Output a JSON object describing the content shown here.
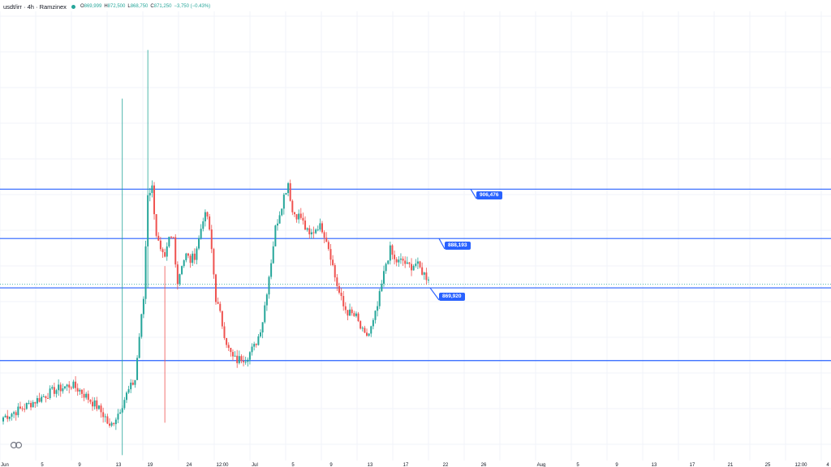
{
  "header": {
    "symbol": "usdt/irr · 4h · Ramzinex",
    "status_color": "#26a69a",
    "ohlc": {
      "o_label": "O",
      "o_value": "869,999",
      "h_label": "H",
      "h_value": "872,500",
      "l_label": "L",
      "l_value": "868,750",
      "c_label": "C",
      "c_value": "871,250",
      "change": "−3,750 (−0.43%)"
    }
  },
  "colors": {
    "up": "#26a69a",
    "down": "#ef5350",
    "hline": "#2962ff",
    "grid": "#f0f3fa",
    "tag": "#2962ff"
  },
  "chart_data": {
    "type": "candlestick",
    "x_ticks": [
      "Jun",
      "5",
      "9",
      "13",
      "19",
      "24",
      "12:00",
      "Jul",
      "5",
      "9",
      "13",
      "17",
      "22",
      "26",
      "Aug",
      "5",
      "9",
      "13",
      "17",
      "21",
      "25",
      "12:00",
      "4"
    ],
    "horizontal_levels": [
      906476,
      888193,
      869920,
      843000
    ],
    "level_labels": [
      "906,476",
      "888,193",
      "869,920"
    ],
    "anchors": [
      [
        0,
        822000
      ],
      [
        4,
        825000
      ],
      [
        8,
        828500
      ],
      [
        12,
        832000
      ],
      [
        16,
        834000
      ],
      [
        18,
        832000
      ],
      [
        20,
        829000
      ],
      [
        22,
        826000
      ],
      [
        24,
        822000
      ],
      [
        25,
        818000
      ],
      [
        27,
        823500
      ],
      [
        29,
        830500
      ],
      [
        31,
        836000
      ],
      [
        32,
        852000
      ],
      [
        33,
        866000
      ],
      [
        34,
        905000
      ],
      [
        35,
        907000
      ],
      [
        36,
        890000
      ],
      [
        37,
        883000
      ],
      [
        38,
        880000
      ],
      [
        39,
        888000
      ],
      [
        40,
        888500
      ],
      [
        41,
        872000
      ],
      [
        42,
        879000
      ],
      [
        43,
        882000
      ],
      [
        44,
        880000
      ],
      [
        45,
        882000
      ],
      [
        46,
        888000
      ],
      [
        47,
        896000
      ],
      [
        48,
        896500
      ],
      [
        49,
        884000
      ],
      [
        50,
        866000
      ],
      [
        51,
        860000
      ],
      [
        52,
        853000
      ],
      [
        53,
        847000
      ],
      [
        54,
        844000
      ],
      [
        55,
        843000
      ],
      [
        56,
        844000
      ],
      [
        57,
        844000
      ],
      [
        58,
        846000
      ],
      [
        59,
        848000
      ],
      [
        60,
        852000
      ],
      [
        61,
        858000
      ],
      [
        62,
        869000
      ],
      [
        63,
        880000
      ],
      [
        64,
        892000
      ],
      [
        65,
        898000
      ],
      [
        66,
        904000
      ],
      [
        67,
        909000
      ],
      [
        68,
        898000
      ],
      [
        69,
        897000
      ],
      [
        70,
        896000
      ],
      [
        71,
        892000
      ],
      [
        72,
        889000
      ],
      [
        73,
        891000
      ],
      [
        74,
        893000
      ],
      [
        75,
        892000
      ],
      [
        76,
        888000
      ],
      [
        77,
        882000
      ],
      [
        78,
        874000
      ],
      [
        79,
        868000
      ],
      [
        80,
        863000
      ],
      [
        81,
        861000
      ],
      [
        82,
        860000
      ],
      [
        83,
        859000
      ],
      [
        84,
        855000
      ],
      [
        85,
        852000
      ],
      [
        86,
        853000
      ],
      [
        87,
        857000
      ],
      [
        88,
        863000
      ],
      [
        89,
        871000
      ],
      [
        90,
        879000
      ],
      [
        91,
        884000
      ],
      [
        92,
        880000
      ],
      [
        93,
        879500
      ],
      [
        94,
        880000
      ],
      [
        95,
        878000
      ],
      [
        96,
        878000
      ],
      [
        97,
        879000
      ],
      [
        98,
        877000
      ],
      [
        99,
        875000
      ],
      [
        100,
        873000
      ]
    ],
    "spikes": [
      [
        28,
        940000,
        808000
      ],
      [
        34,
        958000,
        870000
      ],
      [
        38,
        878000,
        820000
      ]
    ],
    "y_range": [
      806000,
      960000
    ]
  },
  "brand": {
    "logo_icon": "tradingview-logo-icon"
  }
}
